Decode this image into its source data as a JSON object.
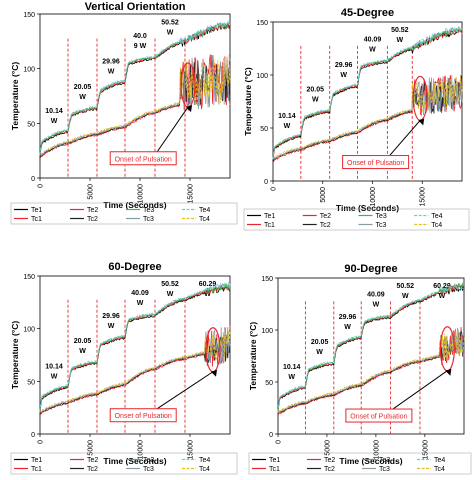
{
  "colors": {
    "Te1": "#000000",
    "Te2": "#e8272c",
    "Te3": "#3cb44b",
    "Te4": "#6ec6e6",
    "Tc1": "#e8272c",
    "Tc2": "#222222",
    "Tc3": "#8a9ba8",
    "Tc4": "#e0c020",
    "marker_line": "#e8272c",
    "onset_ellipse": "#e8272c",
    "onset_box": "#e8272c"
  },
  "chart_data": [
    {
      "type": "line",
      "title": "Vertical Orientation",
      "xlabel": "Time (Seconds)",
      "ylabel": "Temperature (°C)",
      "xlim": [
        0,
        19000
      ],
      "ylim": [
        0,
        150
      ],
      "xticks": [
        "0",
        "5000",
        "10000",
        "15000"
      ],
      "yticks": [
        "0",
        "50",
        "100",
        "150"
      ],
      "power_steps": [
        {
          "t": 0,
          "label_lines": [
            "10.14",
            "W"
          ]
        },
        {
          "t": 2800,
          "label_lines": [
            "20.05",
            "W"
          ]
        },
        {
          "t": 5700,
          "label_lines": [
            "29.96",
            "W"
          ]
        },
        {
          "t": 8500,
          "label_lines": [
            "40.0",
            "9 W"
          ]
        },
        {
          "t": 11500,
          "label_lines": [
            "50.52",
            "W"
          ]
        }
      ],
      "step_times": [
        2800,
        5700,
        8500,
        11500,
        14500
      ],
      "evaporator_levels": [
        [
          0,
          20
        ],
        [
          200,
          33
        ],
        [
          2800,
          43
        ],
        [
          3200,
          58
        ],
        [
          5700,
          64
        ],
        [
          6100,
          80
        ],
        [
          8500,
          88
        ],
        [
          8900,
          105
        ],
        [
          11500,
          110
        ],
        [
          14500,
          125
        ],
        [
          19000,
          140
        ]
      ],
      "condenser_levels": [
        [
          0,
          20
        ],
        [
          2800,
          32
        ],
        [
          5700,
          40
        ],
        [
          8500,
          47
        ],
        [
          11500,
          60
        ],
        [
          14500,
          68
        ],
        [
          19000,
          75
        ]
      ],
      "pulsation": {
        "start": 14000,
        "center": 85,
        "amplitude": 25
      },
      "onset_label": "Onset of Pulsation",
      "legend_rows": [
        [
          "Te1",
          "Te2",
          "Te3",
          "Te4"
        ],
        [
          "Tc1",
          "Tc2",
          "Tc3",
          "Tc4"
        ]
      ]
    },
    {
      "type": "line",
      "title": "45-Degree",
      "xlabel": "Time (Seconds)",
      "ylabel": "Temperature (°C)",
      "xlim": [
        0,
        19000
      ],
      "ylim": [
        0,
        150
      ],
      "xticks": [
        "0",
        "5000",
        "10000",
        "15000"
      ],
      "yticks": [
        "0",
        "50",
        "100",
        "150"
      ],
      "power_steps": [
        {
          "t": 0,
          "label_lines": [
            "10.14",
            "W"
          ]
        },
        {
          "t": 2800,
          "label_lines": [
            "20.05",
            "W"
          ]
        },
        {
          "t": 5700,
          "label_lines": [
            "29.96",
            "W"
          ]
        },
        {
          "t": 8500,
          "label_lines": [
            "40.09",
            "W"
          ]
        },
        {
          "t": 11500,
          "label_lines": [
            "50.52",
            "W"
          ]
        }
      ],
      "step_times": [
        2800,
        5700,
        8500,
        11500,
        14000
      ],
      "evaporator_levels": [
        [
          0,
          20
        ],
        [
          200,
          32
        ],
        [
          2800,
          43
        ],
        [
          3200,
          60
        ],
        [
          5700,
          66
        ],
        [
          6100,
          82
        ],
        [
          8500,
          90
        ],
        [
          8900,
          108
        ],
        [
          11500,
          113
        ],
        [
          14000,
          125
        ],
        [
          19000,
          142
        ]
      ],
      "condenser_levels": [
        [
          0,
          20
        ],
        [
          2800,
          30
        ],
        [
          5700,
          38
        ],
        [
          8500,
          46
        ],
        [
          11500,
          58
        ],
        [
          14000,
          66
        ],
        [
          19000,
          75
        ]
      ],
      "pulsation": {
        "start": 14000,
        "center": 78,
        "amplitude": 18
      },
      "onset_label": "Onset of Pulsation",
      "legend_rows": [
        [
          "Te1",
          "Te2",
          "Te3",
          "Te4"
        ],
        [
          "Tc1",
          "Tc2",
          "Tc3",
          "Tc4"
        ]
      ]
    },
    {
      "type": "line",
      "title": "60-Degree",
      "xlabel": "Time (Seconds)",
      "ylabel": "Temperature (°C)",
      "xlim": [
        0,
        19000
      ],
      "ylim": [
        0,
        150
      ],
      "xticks": [
        "0",
        "5000",
        "10000",
        "15000"
      ],
      "yticks": [
        "0",
        "50",
        "100",
        "150"
      ],
      "power_steps": [
        {
          "t": 0,
          "label_lines": [
            "10.14",
            "W"
          ]
        },
        {
          "t": 2800,
          "label_lines": [
            "20.05",
            "W"
          ]
        },
        {
          "t": 5700,
          "label_lines": [
            "29.96",
            "W"
          ]
        },
        {
          "t": 8500,
          "label_lines": [
            "40.09",
            "W"
          ]
        },
        {
          "t": 11500,
          "label_lines": [
            "50.52",
            "W"
          ]
        },
        {
          "t": 14500,
          "label_lines": [
            "60.29",
            "W"
          ]
        }
      ],
      "step_times": [
        2800,
        5700,
        8500,
        11500,
        14500
      ],
      "evaporator_levels": [
        [
          0,
          20
        ],
        [
          200,
          35
        ],
        [
          2800,
          45
        ],
        [
          3200,
          62
        ],
        [
          5700,
          68
        ],
        [
          6100,
          85
        ],
        [
          8500,
          92
        ],
        [
          8900,
          108
        ],
        [
          11500,
          113
        ],
        [
          14500,
          128
        ],
        [
          19000,
          140
        ]
      ],
      "condenser_levels": [
        [
          0,
          20
        ],
        [
          2800,
          30
        ],
        [
          5700,
          38
        ],
        [
          8500,
          47
        ],
        [
          11500,
          62
        ],
        [
          14500,
          72
        ],
        [
          19000,
          80
        ]
      ],
      "pulsation": {
        "start": 16500,
        "center": 80,
        "amplitude": 18
      },
      "onset_label": "Onset of Pulsation",
      "legend_rows": [
        [
          "Te1",
          "Te2",
          "Te3",
          "Te4"
        ],
        [
          "Tc1",
          "Tc2",
          "Tc3",
          "Tc4"
        ]
      ]
    },
    {
      "type": "line",
      "title": "90-Degree",
      "xlabel": "Time (Seconds)",
      "ylabel": "Temperature (°C)",
      "xlim": [
        0,
        19000
      ],
      "ylim": [
        0,
        150
      ],
      "xticks": [
        "0",
        "5000",
        "10000",
        "15000"
      ],
      "yticks": [
        "0",
        "50",
        "100",
        "150"
      ],
      "power_steps": [
        {
          "t": 0,
          "label_lines": [
            "10.14",
            "W"
          ]
        },
        {
          "t": 2800,
          "label_lines": [
            "20.05",
            "W"
          ]
        },
        {
          "t": 5700,
          "label_lines": [
            "29.96",
            "W"
          ]
        },
        {
          "t": 8500,
          "label_lines": [
            "40.09",
            "W"
          ]
        },
        {
          "t": 11500,
          "label_lines": [
            "50.52",
            "W"
          ]
        },
        {
          "t": 14500,
          "label_lines": [
            "60.29",
            "W"
          ]
        }
      ],
      "step_times": [
        2800,
        5700,
        8500,
        11500,
        14500
      ],
      "evaporator_levels": [
        [
          0,
          20
        ],
        [
          200,
          35
        ],
        [
          2800,
          45
        ],
        [
          3200,
          62
        ],
        [
          5700,
          68
        ],
        [
          6100,
          85
        ],
        [
          8500,
          93
        ],
        [
          8900,
          108
        ],
        [
          11500,
          113
        ],
        [
          14500,
          128
        ],
        [
          19000,
          142
        ]
      ],
      "condenser_levels": [
        [
          0,
          20
        ],
        [
          2800,
          30
        ],
        [
          5700,
          38
        ],
        [
          8500,
          47
        ],
        [
          11500,
          60
        ],
        [
          14500,
          70
        ],
        [
          19000,
          78
        ]
      ],
      "pulsation": {
        "start": 16500,
        "center": 82,
        "amplitude": 16
      },
      "onset_label": "Onset of Pulsation",
      "legend_rows": [
        [
          "Te1",
          "Te2",
          "Te3",
          "Te4"
        ],
        [
          "Tc1",
          "Tc2",
          "Tc3",
          "Tc4"
        ]
      ]
    }
  ]
}
